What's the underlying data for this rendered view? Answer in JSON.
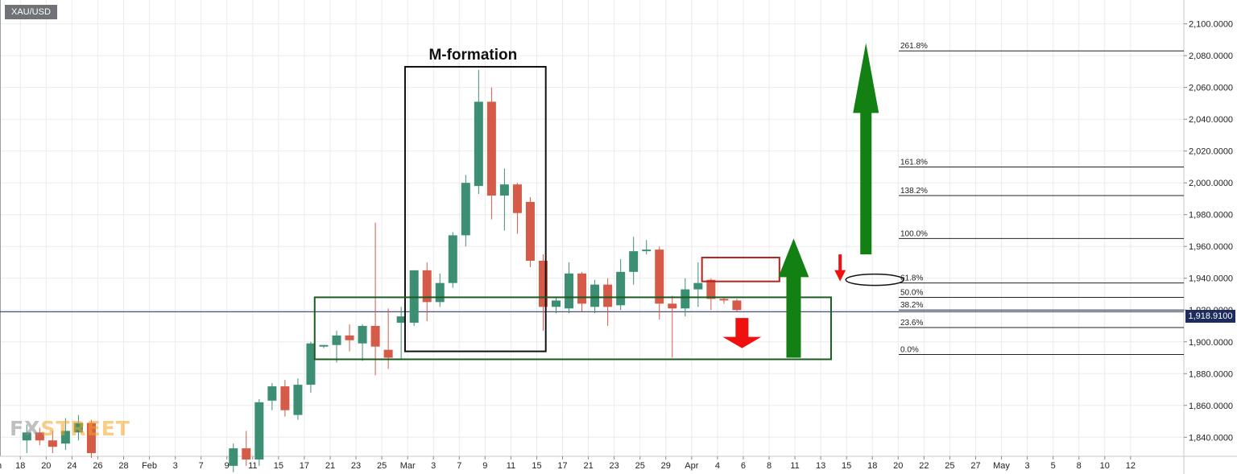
{
  "symbol": "XAU/USD",
  "watermark": {
    "part1": "FX",
    "part2": "STREET"
  },
  "current_price": "1,918.9100",
  "colors": {
    "bull": "#3c8f73",
    "bear": "#d55a47",
    "frame": "#111111",
    "green_frame": "#1c5a24",
    "red_frame": "#b3241f",
    "green_arrow": "#138013",
    "red_arrow": "#f01010",
    "fib_line": "#222222",
    "price_line": "#1e2b5e",
    "grid": "#ebebeb"
  },
  "chart_data": {
    "type": "candlestick",
    "title": "M-formation",
    "ylim": [
      1828,
      2115
    ],
    "price_axis_labels": [
      "2,100.0000",
      "2,080.0000",
      "2,060.0000",
      "2,040.0000",
      "2,020.0000",
      "2,000.0000",
      "1,980.0000",
      "1,960.0000",
      "1,940.0000",
      "1,920.0000",
      "1,900.0000",
      "1,880.0000",
      "1,860.0000",
      "1,840.0000"
    ],
    "price_axis_values": [
      2100,
      2080,
      2060,
      2040,
      2020,
      2000,
      1980,
      1960,
      1940,
      1920,
      1900,
      1880,
      1860,
      1840
    ],
    "time_axis_labels": [
      "Jan",
      "18",
      "20",
      "24",
      "26",
      "28",
      "Feb",
      "3",
      "7",
      "9",
      "11",
      "15",
      "17",
      "21",
      "23",
      "25",
      "Mar",
      "3",
      "7",
      "9",
      "11",
      "15",
      "17",
      "21",
      "23",
      "25",
      "29",
      "Apr",
      "4",
      "6",
      "8",
      "11",
      "13",
      "15",
      "18",
      "20",
      "22",
      "25",
      "27",
      "May",
      "3",
      "5",
      "8",
      "10",
      "12"
    ],
    "time_axis_index": [
      -1.5,
      0.5,
      2.5,
      4.5,
      6.5,
      8.5,
      10.5,
      12.5,
      14.5,
      16.5,
      18.5,
      20.5,
      22.5,
      24.5,
      26.5,
      28.5,
      30.5,
      32.5,
      34.5,
      36.5,
      38.5,
      40.5,
      42.5,
      44.5,
      46.5,
      48.5,
      50.5,
      52.5,
      54.5,
      56.5,
      58.5,
      60.5,
      62.5,
      64.5,
      66.5,
      68.5,
      70.5,
      72.5,
      74.5,
      76.5,
      78.5,
      80.5,
      82.5,
      84.5,
      86.5
    ],
    "candles": [
      {
        "i": 1,
        "o": 1838,
        "h": 1848,
        "l": 1830,
        "c": 1843
      },
      {
        "i": 2,
        "o": 1843,
        "h": 1846,
        "l": 1835,
        "c": 1838
      },
      {
        "i": 3,
        "o": 1838,
        "h": 1844,
        "l": 1830,
        "c": 1834
      },
      {
        "i": 4,
        "o": 1836,
        "h": 1852,
        "l": 1832,
        "c": 1844
      },
      {
        "i": 5,
        "o": 1843,
        "h": 1854,
        "l": 1838,
        "c": 1849
      },
      {
        "i": 6,
        "o": 1849,
        "h": 1851,
        "l": 1827,
        "c": 1830
      },
      {
        "i": 17,
        "o": 1822,
        "h": 1836,
        "l": 1818,
        "c": 1833
      },
      {
        "i": 18,
        "o": 1833,
        "h": 1844,
        "l": 1822,
        "c": 1826
      },
      {
        "i": 19,
        "o": 1826,
        "h": 1864,
        "l": 1822,
        "c": 1862
      },
      {
        "i": 20,
        "o": 1863,
        "h": 1874,
        "l": 1857,
        "c": 1872
      },
      {
        "i": 21,
        "o": 1872,
        "h": 1876,
        "l": 1853,
        "c": 1857
      },
      {
        "i": 22,
        "o": 1854,
        "h": 1877,
        "l": 1851,
        "c": 1873
      },
      {
        "i": 23,
        "o": 1873,
        "h": 1900,
        "l": 1868,
        "c": 1899
      },
      {
        "i": 24,
        "o": 1897,
        "h": 1898,
        "l": 1896,
        "c": 1898
      },
      {
        "i": 25,
        "o": 1898,
        "h": 1907,
        "l": 1887,
        "c": 1904
      },
      {
        "i": 26,
        "o": 1904,
        "h": 1911,
        "l": 1894,
        "c": 1901
      },
      {
        "i": 27,
        "o": 1899,
        "h": 1911,
        "l": 1888,
        "c": 1910
      },
      {
        "i": 28,
        "o": 1910,
        "h": 1975,
        "l": 1879,
        "c": 1897
      },
      {
        "i": 29,
        "o": 1895,
        "h": 1921,
        "l": 1883,
        "c": 1890
      },
      {
        "i": 30,
        "o": 1912,
        "h": 1922,
        "l": 1889,
        "c": 1916
      },
      {
        "i": 31,
        "o": 1912,
        "h": 1943,
        "l": 1910,
        "c": 1945
      },
      {
        "i": 32,
        "o": 1945,
        "h": 1950,
        "l": 1913,
        "c": 1925
      },
      {
        "i": 33,
        "o": 1925,
        "h": 1943,
        "l": 1922,
        "c": 1937
      },
      {
        "i": 34,
        "o": 1937,
        "h": 1969,
        "l": 1934,
        "c": 1967
      },
      {
        "i": 35,
        "o": 1967,
        "h": 2005,
        "l": 1960,
        "c": 2000
      },
      {
        "i": 36,
        "o": 1998,
        "h": 2071,
        "l": 1993,
        "c": 2051
      },
      {
        "i": 37,
        "o": 2051,
        "h": 2060,
        "l": 1977,
        "c": 1992
      },
      {
        "i": 38,
        "o": 1992,
        "h": 2009,
        "l": 1970,
        "c": 1999
      },
      {
        "i": 39,
        "o": 1999,
        "h": 2000,
        "l": 1968,
        "c": 1981
      },
      {
        "i": 40,
        "o": 1988,
        "h": 1991,
        "l": 1947,
        "c": 1951
      },
      {
        "i": 41,
        "o": 1951,
        "h": 1955,
        "l": 1907,
        "c": 1922
      },
      {
        "i": 42,
        "o": 1922,
        "h": 1928,
        "l": 1918,
        "c": 1926
      },
      {
        "i": 43,
        "o": 1921,
        "h": 1950,
        "l": 1918,
        "c": 1943
      },
      {
        "i": 44,
        "o": 1943,
        "h": 1944,
        "l": 1919,
        "c": 1924
      },
      {
        "i": 45,
        "o": 1922,
        "h": 1939,
        "l": 1918,
        "c": 1936
      },
      {
        "i": 46,
        "o": 1936,
        "h": 1940,
        "l": 1910,
        "c": 1922
      },
      {
        "i": 47,
        "o": 1923,
        "h": 1952,
        "l": 1920,
        "c": 1944
      },
      {
        "i": 48,
        "o": 1944,
        "h": 1966,
        "l": 1936,
        "c": 1957
      },
      {
        "i": 49,
        "o": 1957,
        "h": 1964,
        "l": 1955,
        "c": 1958
      },
      {
        "i": 50,
        "o": 1958,
        "h": 1960,
        "l": 1914,
        "c": 1924
      },
      {
        "i": 51,
        "o": 1924,
        "h": 1929,
        "l": 1890,
        "c": 1921
      },
      {
        "i": 52,
        "o": 1921,
        "h": 1940,
        "l": 1916,
        "c": 1933
      },
      {
        "i": 53,
        "o": 1933,
        "h": 1950,
        "l": 1922,
        "c": 1937
      },
      {
        "i": 54,
        "o": 1939,
        "h": 1940,
        "l": 1920,
        "c": 1927
      },
      {
        "i": 55,
        "o": 1927,
        "h": 1928,
        "l": 1924,
        "c": 1926
      },
      {
        "i": 56,
        "o": 1926,
        "h": 1927,
        "l": 1919,
        "c": 1920
      }
    ],
    "fib_levels": [
      {
        "label": "261.8%",
        "price": 2083
      },
      {
        "label": "161.8%",
        "price": 2010
      },
      {
        "label": "138.2%",
        "price": 1992
      },
      {
        "label": "100.0%",
        "price": 1965
      },
      {
        "label": "61.8%",
        "price": 1937
      },
      {
        "label": "50.0%",
        "price": 1928
      },
      {
        "label": "38.2%",
        "price": 1920
      },
      {
        "label": "23.6%",
        "price": 1909
      },
      {
        "label": "0.0%",
        "price": 1892
      }
    ],
    "current_price": 1918.91,
    "annotations": {
      "m_formation_box": {
        "from_i": 30.3,
        "to_i": 41.2,
        "top": 2073,
        "bottom": 1894
      },
      "support_range_box": {
        "from_i": 23.3,
        "to_i": 63.3,
        "top": 1928,
        "bottom": 1889
      },
      "red_range_box": {
        "from_i": 53.3,
        "to_i": 59.3,
        "top": 1953,
        "bottom": 1938
      },
      "green_arrow_long": {
        "at_i": 66.0,
        "from": 1955,
        "to": 2088
      },
      "green_arrow_mid": {
        "at_i": 60.4,
        "from": 1890,
        "to": 1965
      },
      "red_arrow_small": {
        "at_i": 64.0,
        "from": 1955,
        "to": 1938
      },
      "red_arrow_down": {
        "at_i": 56.4,
        "from": 1915,
        "to": 1896
      },
      "fib_61_ellipse": {
        "at_i": 66.5,
        "price": 1938
      }
    }
  }
}
